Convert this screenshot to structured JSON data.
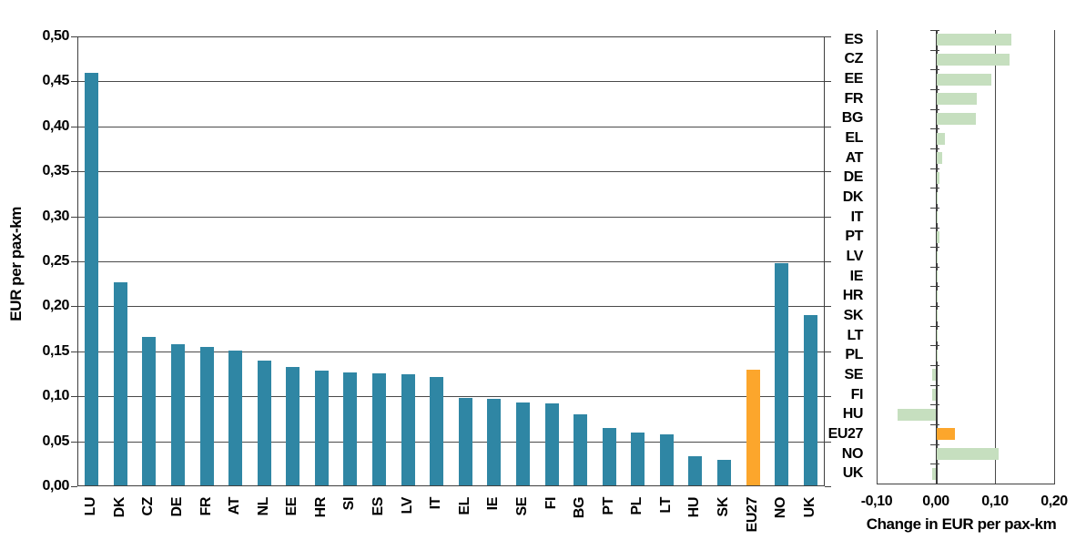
{
  "chart_data": [
    {
      "type": "bar",
      "orientation": "vertical",
      "title": "",
      "ylabel": "EUR per pax-km",
      "xlabel": "",
      "ylim": [
        0,
        0.5
      ],
      "y_tick_step": 0.05,
      "y_tick_labels": [
        "0,00",
        "0,05",
        "0,10",
        "0,15",
        "0,20",
        "0,25",
        "0,30",
        "0,35",
        "0,40",
        "0,45",
        "0,50"
      ],
      "grid": true,
      "legend": "none",
      "categories": [
        "LU",
        "DK",
        "CZ",
        "DE",
        "FR",
        "AT",
        "NL",
        "EE",
        "HR",
        "SI",
        "ES",
        "LV",
        "IT",
        "EL",
        "IE",
        "SE",
        "FI",
        "BG",
        "PT",
        "PL",
        "LT",
        "HU",
        "SK",
        "EU27",
        "NO",
        "UK"
      ],
      "values": [
        0.46,
        0.227,
        0.166,
        0.158,
        0.155,
        0.151,
        0.14,
        0.133,
        0.129,
        0.127,
        0.126,
        0.124,
        0.121,
        0.098,
        0.097,
        0.093,
        0.092,
        0.08,
        0.065,
        0.06,
        0.058,
        0.033,
        0.029,
        0.13,
        0.248,
        0.19
      ],
      "highlight_category": "EU27",
      "colors": {
        "bar": "#2F86A4",
        "highlight": "#FCA62C"
      }
    },
    {
      "type": "bar",
      "orientation": "horizontal",
      "title": "",
      "xlabel": "Change in EUR per pax-km",
      "ylabel": "",
      "xlim": [
        -0.1,
        0.2
      ],
      "x_tick_step": 0.1,
      "x_tick_labels": [
        "-0,10",
        "0,00",
        "0,10",
        "0,20"
      ],
      "grid": true,
      "legend": "none",
      "categories": [
        "ES",
        "CZ",
        "EE",
        "FR",
        "BG",
        "EL",
        "AT",
        "DE",
        "DK",
        "IT",
        "PT",
        "LV",
        "IE",
        "HR",
        "SK",
        "LT",
        "PL",
        "SE",
        "FI",
        "HU",
        "EU27",
        "NO",
        "UK"
      ],
      "values": [
        0.126,
        0.123,
        0.093,
        0.067,
        0.066,
        0.014,
        0.009,
        0.005,
        0.002,
        0.002,
        0.004,
        0.002,
        0.001,
        0.001,
        0.001,
        0.001,
        0.001,
        -0.006,
        -0.006,
        -0.065,
        0.03,
        0.104,
        -0.006
      ],
      "highlight_category": "EU27",
      "colors": {
        "bar": "#C6DFBF",
        "highlight": "#FCA62C"
      }
    }
  ]
}
